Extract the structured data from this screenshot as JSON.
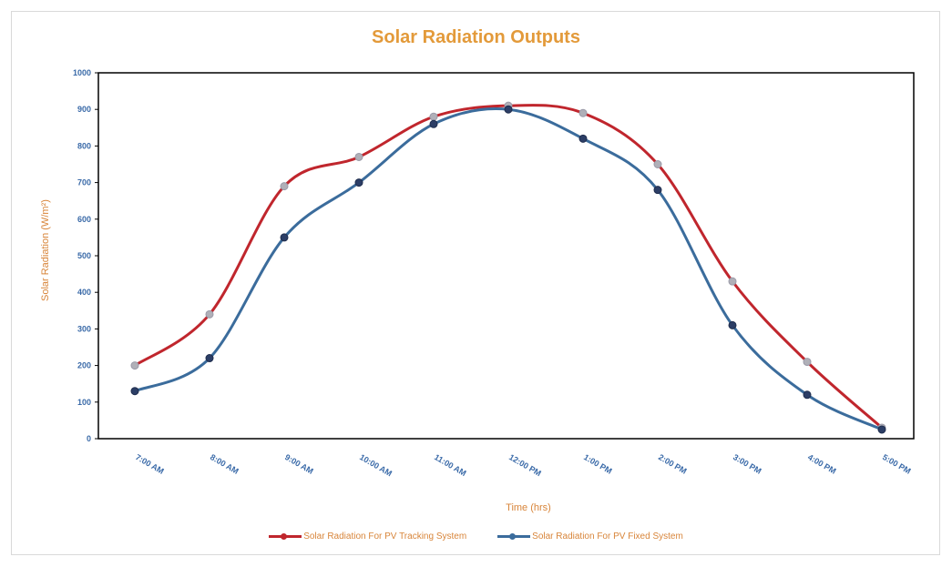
{
  "chart_data": {
    "type": "line",
    "title": "Solar Radiation Outputs",
    "xlabel": "Time (hrs)",
    "ylabel": "Solar Radiation (W/m²)",
    "ylim": [
      0,
      1000
    ],
    "yticks": [
      0,
      100,
      200,
      300,
      400,
      500,
      600,
      700,
      800,
      900,
      1000
    ],
    "categories": [
      "7:00 AM",
      "8:00 AM",
      "9:00 AM",
      "10:00 AM",
      "11:00 AM",
      "12:00 PM",
      "1:00 PM",
      "2:00 PM",
      "3:00 PM",
      "4:00 PM",
      "5:00 PM"
    ],
    "series": [
      {
        "name": "Solar Radiation For PV Tracking System",
        "color": "#c0262d",
        "values": [
          200,
          340,
          690,
          770,
          880,
          910,
          890,
          750,
          430,
          210,
          30
        ]
      },
      {
        "name": "Solar Radiation For PV Fixed System",
        "color": "#3b6c9c",
        "values": [
          130,
          220,
          550,
          700,
          860,
          900,
          820,
          680,
          310,
          120,
          25
        ]
      }
    ],
    "grid": false,
    "legend_position": "bottom"
  }
}
